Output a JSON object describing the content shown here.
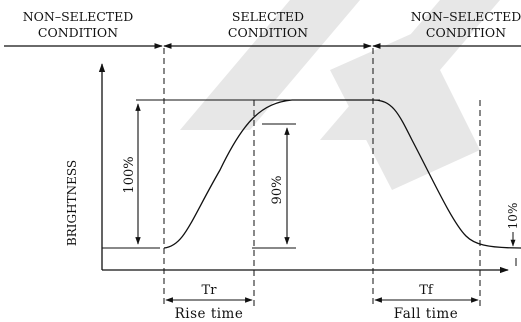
{
  "header": {
    "left_condition": [
      "NON–SELECTED",
      "CONDITION"
    ],
    "center_condition": [
      "SELECTED",
      "CONDITION"
    ],
    "right_condition": [
      "NON–SELECTED",
      "CONDITION"
    ]
  },
  "axes": {
    "y_label": "BRIGHTNESS"
  },
  "annotations": {
    "full_range": "100%",
    "rise_level": "90%",
    "fall_level": "10%",
    "rise_symbol": "Tr",
    "fall_symbol": "Tf",
    "rise_caption": "Rise time",
    "fall_caption": "Fall time"
  },
  "colors": {
    "line": "#111111",
    "background": "#ffffff",
    "watermark": "#e6e6e6"
  }
}
